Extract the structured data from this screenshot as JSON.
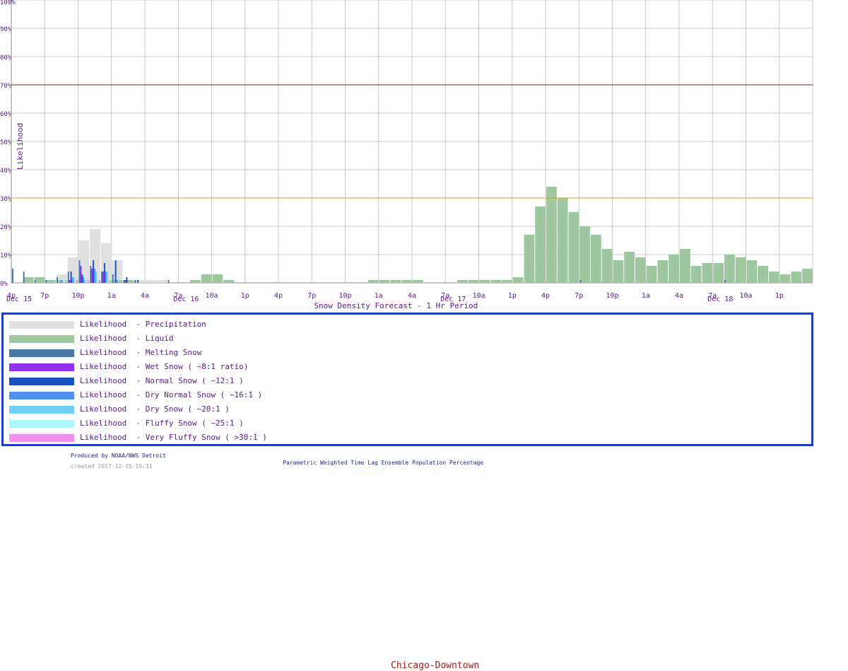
{
  "chart_data": {
    "type": "bar",
    "title": "Snow Density Forecast -  1 Hr Period",
    "ylabel": "Likelihood",
    "ylim": [
      0,
      100
    ],
    "y_ticks": [
      "0%",
      "10%",
      "20%",
      "30%",
      "40%",
      "50%",
      "60%",
      "70%",
      "80%",
      "90%",
      "100%"
    ],
    "grid": true,
    "x_tick_labels": [
      "4p",
      "7p",
      "10p",
      "1a",
      "4a",
      "7a",
      "10a",
      "1p",
      "4p",
      "7p",
      "10p",
      "1a",
      "4a",
      "7a",
      "10a",
      "1p",
      "4p",
      "7p",
      "10p",
      "1a",
      "4a",
      "7a",
      "10a",
      "1p"
    ],
    "date_labels": [
      {
        "label": "Dec 15",
        "tick_index": 0
      },
      {
        "label": "Dec 16",
        "tick_index": 5
      },
      {
        "label": "Dec 17",
        "tick_index": 13
      },
      {
        "label": "Dec 18",
        "tick_index": 21
      }
    ],
    "hours": 72,
    "reference_lines": [
      {
        "value": 70,
        "color": "#7a1a1a"
      },
      {
        "value": 30,
        "color": "#d4a020"
      }
    ],
    "series": [
      {
        "name": "Likelihood  - Precipitation",
        "color": "#e0e0e0",
        "values": [
          0,
          2,
          2,
          1,
          3,
          9,
          15,
          19,
          14,
          8,
          1,
          1,
          1,
          1,
          0,
          0,
          0,
          0,
          0,
          0,
          0,
          0,
          0,
          0,
          0,
          0,
          0,
          0,
          0,
          0,
          0,
          0,
          0,
          0,
          0,
          0,
          0,
          0,
          0,
          0,
          0,
          0,
          0,
          0,
          1,
          2,
          17,
          27,
          34,
          30,
          25,
          20,
          17,
          12,
          8,
          11,
          9,
          6,
          8,
          10,
          12,
          6,
          7,
          7,
          10,
          9,
          8,
          6,
          4,
          3,
          4,
          5
        ]
      },
      {
        "name": "Likelihood  - Liquid",
        "color": "#a0c8a0",
        "values": [
          0,
          2,
          2,
          1,
          1,
          1,
          1,
          1,
          1,
          1,
          1,
          0,
          0,
          0,
          0,
          0,
          1,
          3,
          3,
          1,
          0,
          0,
          0,
          0,
          0,
          0,
          0,
          0,
          0,
          0,
          0,
          0,
          1,
          1,
          1,
          1,
          1,
          0,
          0,
          0,
          1,
          1,
          1,
          1,
          1,
          2,
          17,
          27,
          34,
          30,
          25,
          20,
          17,
          12,
          8,
          11,
          9,
          6,
          8,
          10,
          12,
          6,
          7,
          7,
          10,
          9,
          8,
          6,
          4,
          3,
          4,
          5
        ]
      },
      {
        "name": "Likelihood  - Melting Snow",
        "color": "#4878a8",
        "values": [
          5,
          4,
          1,
          1,
          2,
          4,
          8,
          6,
          4,
          3,
          1,
          1,
          0,
          0,
          1,
          0,
          0,
          0,
          0,
          0,
          0,
          0,
          0,
          0,
          0,
          0,
          0,
          0,
          0,
          0,
          0,
          0,
          0,
          0,
          0,
          0,
          0,
          0,
          0,
          0,
          0,
          0,
          0,
          0,
          0,
          0,
          0,
          0,
          0,
          0,
          0,
          1,
          0,
          0,
          0,
          0,
          0,
          0,
          0,
          0,
          0,
          0,
          0,
          0,
          1,
          0,
          0,
          0,
          0,
          0,
          0,
          0
        ]
      },
      {
        "name": "Likelihood  - Wet Snow ( ~8:1 ratio)",
        "color": "#9030f0",
        "values": [
          0,
          0,
          0,
          0,
          0,
          1,
          6,
          5,
          4,
          0,
          1,
          0,
          0,
          0,
          0,
          0,
          0,
          0,
          0,
          0,
          0,
          0,
          0,
          0,
          0,
          0,
          0,
          0,
          0,
          0,
          0,
          0,
          0,
          0,
          0,
          0,
          0,
          0,
          0,
          0,
          0,
          0,
          0,
          0,
          0,
          0,
          0,
          0,
          0,
          0,
          0,
          0,
          0,
          0,
          0,
          0,
          0,
          0,
          0,
          0,
          0,
          0,
          0,
          0,
          0,
          0,
          0,
          0,
          0,
          0,
          0,
          0
        ]
      },
      {
        "name": "Likelihood  - Normal Snow ( ~12:1 )",
        "color": "#1850c0",
        "values": [
          0,
          0,
          0,
          0,
          0,
          4,
          3,
          8,
          7,
          8,
          2,
          1,
          0,
          0,
          0,
          0,
          0,
          0,
          0,
          0,
          0,
          0,
          0,
          0,
          0,
          0,
          0,
          0,
          0,
          0,
          0,
          0,
          0,
          0,
          0,
          0,
          0,
          0,
          0,
          0,
          0,
          0,
          0,
          0,
          0,
          0,
          0,
          0,
          0,
          0,
          0,
          0,
          0,
          0,
          0,
          0,
          0,
          0,
          0,
          0,
          0,
          0,
          0,
          0,
          0,
          0,
          0,
          0,
          0,
          0,
          0,
          0
        ]
      },
      {
        "name": "Likelihood  - Dry Normal Snow ( ~16:1 )",
        "color": "#5090f0",
        "values": [
          0,
          0,
          0,
          0,
          1,
          2,
          2,
          5,
          4,
          1,
          0,
          0,
          0,
          0,
          0,
          0,
          0,
          0,
          0,
          0,
          0,
          0,
          0,
          0,
          0,
          0,
          0,
          0,
          0,
          0,
          0,
          0,
          0,
          0,
          0,
          0,
          0,
          0,
          0,
          0,
          0,
          0,
          0,
          0,
          0,
          0,
          0,
          0,
          0,
          0,
          0,
          0,
          0,
          0,
          0,
          0,
          0,
          0,
          0,
          0,
          0,
          0,
          0,
          0,
          0,
          0,
          0,
          0,
          0,
          0,
          0,
          0
        ]
      },
      {
        "name": "Likelihood  - Dry Snow ( ~20:1 )",
        "color": "#70d0f8",
        "values": [
          0,
          0,
          0,
          1,
          1,
          2,
          1,
          4,
          4,
          1,
          0,
          0,
          0,
          0,
          0,
          0,
          0,
          0,
          0,
          0,
          0,
          0,
          0,
          0,
          0,
          0,
          0,
          0,
          0,
          0,
          0,
          0,
          0,
          0,
          0,
          0,
          0,
          0,
          0,
          0,
          0,
          0,
          0,
          0,
          0,
          0,
          0,
          0,
          0,
          0,
          0,
          0,
          0,
          0,
          0,
          0,
          0,
          0,
          0,
          0,
          0,
          0,
          0,
          0,
          0,
          0,
          0,
          0,
          0,
          0,
          0,
          0
        ]
      },
      {
        "name": "Likelihood  - Fluffy Snow ( ~25:1 )",
        "color": "#b0f8f8",
        "values": [
          0,
          0,
          0,
          0,
          1,
          1,
          1,
          1,
          1,
          0,
          0,
          0,
          0,
          0,
          0,
          0,
          0,
          0,
          0,
          0,
          0,
          0,
          0,
          0,
          0,
          0,
          0,
          0,
          0,
          0,
          0,
          0,
          0,
          0,
          0,
          0,
          0,
          0,
          0,
          0,
          0,
          0,
          0,
          0,
          0,
          0,
          0,
          0,
          0,
          0,
          0,
          0,
          0,
          0,
          0,
          0,
          0,
          0,
          0,
          0,
          0,
          0,
          0,
          0,
          0,
          0,
          0,
          0,
          0,
          0,
          0,
          0
        ]
      },
      {
        "name": "Likelihood  - Very Fluffy Snow ( >30:1 )",
        "color": "#f090f0",
        "values": [
          0,
          0,
          0,
          0,
          0,
          1,
          1,
          1,
          0,
          0,
          0,
          0,
          0,
          0,
          0,
          0,
          0,
          0,
          0,
          0,
          0,
          0,
          0,
          0,
          0,
          0,
          0,
          0,
          0,
          0,
          0,
          0,
          0,
          0,
          0,
          0,
          0,
          0,
          0,
          0,
          0,
          0,
          0,
          0,
          0,
          0,
          0,
          0,
          0,
          0,
          0,
          0,
          0,
          0,
          0,
          0,
          0,
          0,
          0,
          0,
          0,
          0,
          0,
          0,
          0,
          0,
          0,
          0,
          0,
          0,
          0,
          0
        ]
      }
    ]
  },
  "station": "Chicago-Downtown",
  "footer": {
    "produced": "Produced by NOAA/NWS Detroit",
    "created": "created 2017-12-15 15:31",
    "caption": "Parametric Weighted Time Lag Ensemble Population Percentage"
  }
}
